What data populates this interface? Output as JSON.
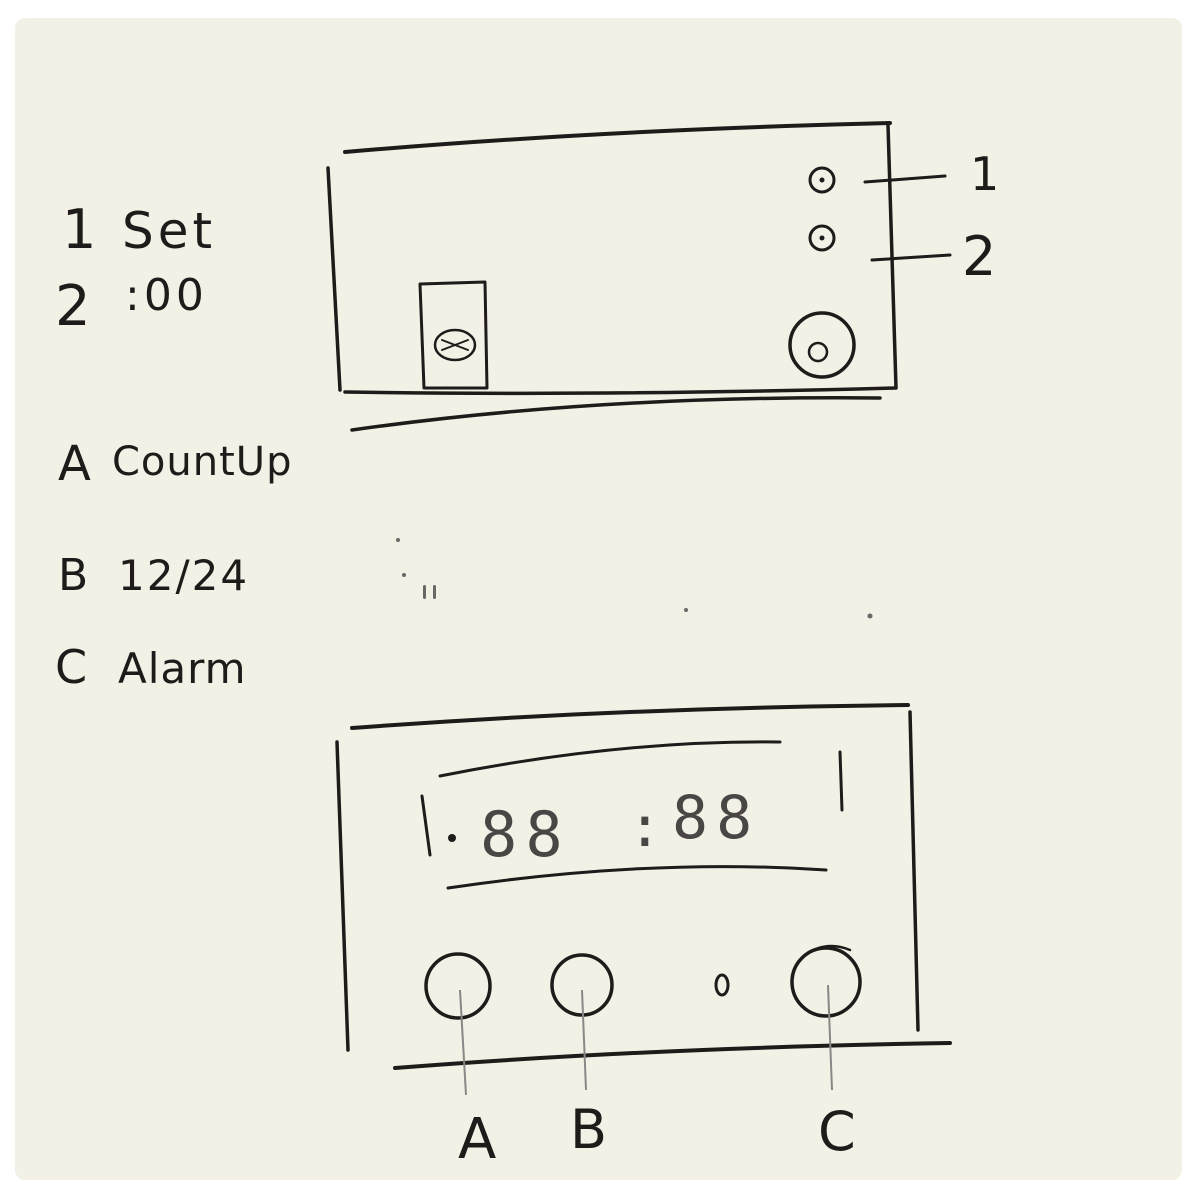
{
  "legend": {
    "items": [
      {
        "key": "1",
        "label": "Set"
      },
      {
        "key": "2",
        "label": ":00"
      },
      {
        "key": "A",
        "label": "CountUp"
      },
      {
        "key": "B",
        "label": "12/24"
      },
      {
        "key": "C",
        "label": "Alarm"
      }
    ]
  },
  "back_panel": {
    "callout_1": "1",
    "callout_2": "2"
  },
  "front_panel": {
    "display": {
      "digits_left": "88",
      "colon": ":",
      "digits_right": "88"
    },
    "button_labels": {
      "a": "A",
      "b": "B",
      "c": "C"
    }
  },
  "colors": {
    "paper": "#f3f0e6",
    "ink": "#1e1b1a"
  }
}
